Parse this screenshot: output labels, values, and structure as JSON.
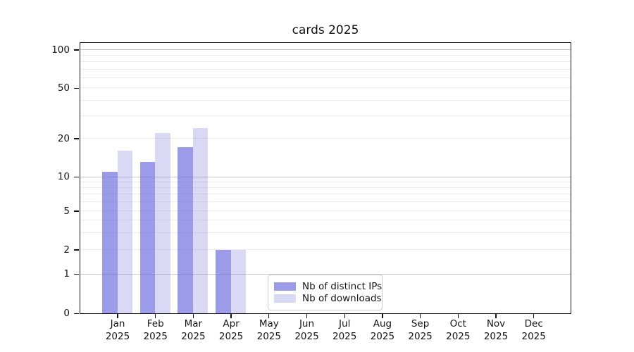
{
  "chart_data": {
    "type": "bar",
    "title": "cards 2025",
    "categories": [
      "Jan 2025",
      "Feb 2025",
      "Mar 2025",
      "Apr 2025",
      "May 2025",
      "Jun 2025",
      "Jul 2025",
      "Aug 2025",
      "Sep 2025",
      "Oct 2025",
      "Nov 2025",
      "Dec 2025"
    ],
    "series": [
      {
        "name": "Nb of distinct IPs",
        "values": [
          11,
          13,
          17,
          2,
          0,
          0,
          0,
          0,
          0,
          0,
          0,
          0
        ],
        "color": "rgba(102,102,221,0.65)"
      },
      {
        "name": "Nb of downloads",
        "values": [
          16,
          22,
          24,
          2,
          0,
          0,
          0,
          0,
          0,
          0,
          0,
          0
        ],
        "color": "rgba(102,102,221,0.25)"
      }
    ],
    "xlabel": "",
    "ylabel": "",
    "yscale": "log-like (compressed below 10, 0 at baseline)",
    "y_tick_labels": [
      "100",
      "50",
      "20",
      "10",
      "5",
      "2",
      "1",
      "0"
    ],
    "ylim": [
      0,
      113
    ],
    "grid": "horizontal minor + darker decade lines",
    "legend_position": "lower center"
  },
  "colors": {
    "bar_distinct_ips": "rgba(102,102,221,0.65)",
    "bar_downloads": "rgba(102,102,221,0.25)",
    "grid_major": "#c6c6c6",
    "grid_minor": "#ededed",
    "axis": "#111111",
    "background": "#ffffff"
  }
}
